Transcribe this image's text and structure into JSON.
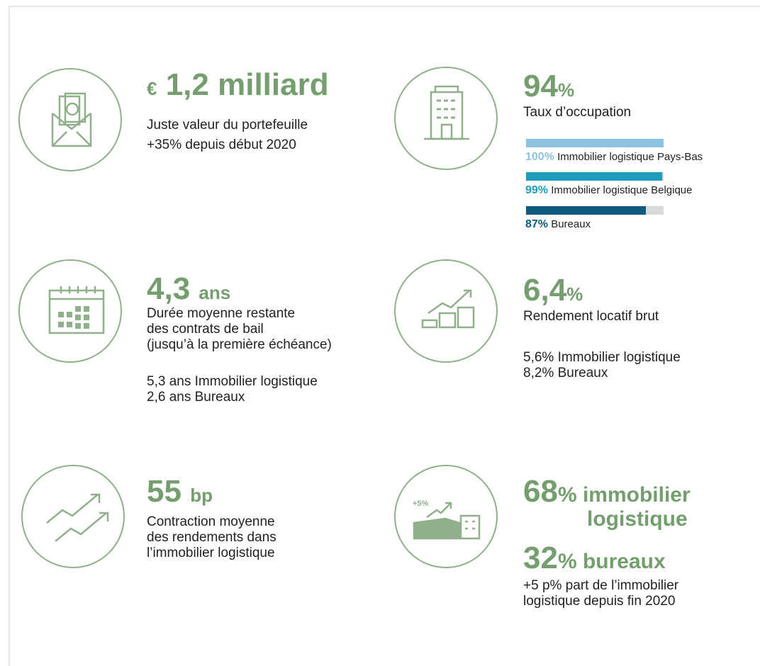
{
  "kpis": [
    {
      "prefix": "€",
      "value": "1,2 milliard",
      "lines": [
        "Juste valeur du portefeuille",
        "+35% depuis début 2020"
      ]
    },
    {
      "value": "94",
      "unit": "%",
      "lines": [
        "Taux d’occupation"
      ]
    },
    {
      "value": "4,3",
      "unit": "ans",
      "lines": [
        "Durée moyenne restante",
        "des contrats de bail",
        "(jusqu’à la première échéance)"
      ],
      "details": [
        "5,3 ans Immobilier logistique",
        "2,6 ans Bureaux"
      ]
    },
    {
      "value": "6,4",
      "unit": "%",
      "lines": [
        "Rendement locatif brut"
      ],
      "details": [
        "5,6% Immobilier logistique",
        "8,2% Bureaux"
      ]
    },
    {
      "value": "55",
      "unit": "bp",
      "lines": [
        "Contraction moyenne",
        "des rendements dans",
        "l’immobilier logistique"
      ]
    },
    {
      "value": "68",
      "unit": "% immobilier",
      "unit_line2": "logistique",
      "value2": "32",
      "unit2": "% bureaux",
      "lines": [
        "+5 p% part de l’immobilier",
        "logistique depuis fin 2020"
      ]
    }
  ],
  "occupancy": [
    {
      "value": 100,
      "label": "100%",
      "name": "Immobilier logistique Pays-Bas",
      "color": "#8fc1e0"
    },
    {
      "value": 99,
      "label": "99%",
      "name": "Immobilier logistique Belgique",
      "color": "#1f9bbf"
    },
    {
      "value": 87,
      "label": "87%",
      "name": "Bureaux",
      "color": "#0d5a80"
    }
  ],
  "icon_label": "+5%"
}
